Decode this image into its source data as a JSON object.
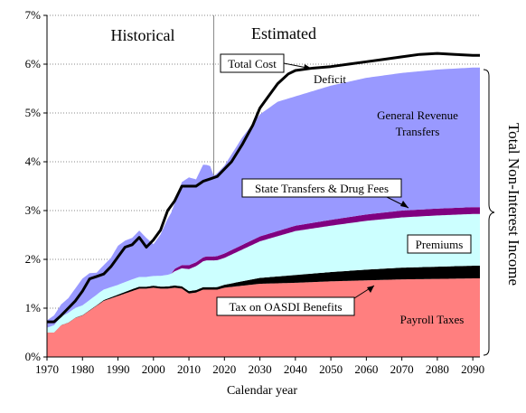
{
  "chart_data": {
    "type": "area",
    "xlabel": "Calendar year",
    "ylabel": "",
    "xlim": [
      1970,
      2092
    ],
    "ylim": [
      0,
      7
    ],
    "x_ticks": [
      1970,
      1980,
      1990,
      2000,
      2010,
      2020,
      2030,
      2040,
      2050,
      2060,
      2070,
      2080,
      2090
    ],
    "y_ticks": [
      "0%",
      "1%",
      "2%",
      "3%",
      "4%",
      "5%",
      "6%",
      "7%"
    ],
    "y_tick_values": [
      0,
      1,
      2,
      3,
      4,
      5,
      6,
      7
    ],
    "grid": "horizontal",
    "divider_year": 2017,
    "region_labels": {
      "historical": "Historical",
      "estimated": "Estimated"
    },
    "brace_label": "Total Non-Interest Income",
    "stacked_series": [
      {
        "name": "Payroll Taxes",
        "color": "#ff7f7f",
        "x": [
          1970,
          1972,
          1974,
          1976,
          1978,
          1980,
          1982,
          1984,
          1986,
          1988,
          1990,
          1992,
          1994,
          1996,
          1998,
          2000,
          2002,
          2004,
          2006,
          2008,
          2010,
          2012,
          2014,
          2016,
          2018,
          2020,
          2025,
          2030,
          2040,
          2050,
          2060,
          2070,
          2080,
          2090,
          2092
        ],
        "y": [
          0.5,
          0.5,
          0.65,
          0.7,
          0.8,
          0.85,
          0.95,
          1.05,
          1.15,
          1.2,
          1.25,
          1.3,
          1.35,
          1.4,
          1.4,
          1.42,
          1.4,
          1.4,
          1.42,
          1.4,
          1.3,
          1.32,
          1.38,
          1.38,
          1.38,
          1.42,
          1.46,
          1.5,
          1.52,
          1.55,
          1.57,
          1.59,
          1.6,
          1.61,
          1.61
        ]
      },
      {
        "name": "Tax on OASDI Benefits",
        "color": "#000000",
        "x": [
          1970,
          1984,
          1994,
          2000,
          2010,
          2017,
          2020,
          2025,
          2030,
          2040,
          2050,
          2060,
          2070,
          2080,
          2090,
          2092
        ],
        "y": [
          0,
          0.01,
          0.04,
          0.04,
          0.05,
          0.05,
          0.06,
          0.09,
          0.12,
          0.16,
          0.19,
          0.22,
          0.24,
          0.25,
          0.26,
          0.26
        ]
      },
      {
        "name": "Premiums",
        "color": "#ccffff",
        "x": [
          1970,
          1972,
          1976,
          1980,
          1985,
          1990,
          1995,
          2000,
          2005,
          2010,
          2015,
          2017,
          2020,
          2025,
          2030,
          2040,
          2050,
          2060,
          2070,
          2080,
          2090,
          2092
        ],
        "y": [
          0.1,
          0.15,
          0.2,
          0.2,
          0.22,
          0.2,
          0.2,
          0.2,
          0.25,
          0.45,
          0.55,
          0.55,
          0.55,
          0.65,
          0.75,
          0.9,
          0.95,
          1.0,
          1.03,
          1.05,
          1.06,
          1.06
        ]
      },
      {
        "name": "State Transfers & Drug Fees",
        "color": "#800080",
        "x": [
          1970,
          2005,
          2006,
          2010,
          2017,
          2020,
          2030,
          2040,
          2050,
          2060,
          2070,
          2080,
          2090,
          2092
        ],
        "y": [
          0,
          0,
          0.05,
          0.08,
          0.08,
          0.09,
          0.1,
          0.11,
          0.12,
          0.13,
          0.14,
          0.14,
          0.14,
          0.14
        ]
      },
      {
        "name": "General Revenue Transfers",
        "color": "#9999ff",
        "x": [
          1970,
          1972,
          1974,
          1976,
          1978,
          1980,
          1982,
          1984,
          1986,
          1988,
          1990,
          1992,
          1994,
          1996,
          1998,
          2000,
          2002,
          2004,
          2006,
          2008,
          2010,
          2012,
          2014,
          2016,
          2017,
          2020,
          2025,
          2030,
          2035,
          2040,
          2050,
          2060,
          2070,
          2080,
          2090,
          2092
        ],
        "y": [
          0.15,
          0.2,
          0.25,
          0.3,
          0.4,
          0.55,
          0.55,
          0.45,
          0.5,
          0.6,
          0.8,
          0.85,
          0.85,
          0.95,
          0.8,
          0.65,
          0.85,
          1.15,
          1.35,
          1.7,
          1.8,
          1.7,
          1.9,
          1.85,
          1.65,
          1.8,
          2.2,
          2.5,
          2.65,
          2.65,
          2.75,
          2.8,
          2.82,
          2.85,
          2.86,
          2.86
        ]
      }
    ],
    "lines": [
      {
        "name": "Total Cost",
        "color": "#000000",
        "x": [
          1970,
          1972,
          1974,
          1976,
          1978,
          1980,
          1982,
          1984,
          1986,
          1988,
          1990,
          1992,
          1994,
          1996,
          1998,
          2000,
          2002,
          2004,
          2006,
          2008,
          2010,
          2012,
          2014,
          2016,
          2018,
          2020,
          2022,
          2025,
          2028,
          2030,
          2032,
          2035,
          2038,
          2040,
          2045,
          2050,
          2055,
          2060,
          2065,
          2070,
          2075,
          2080,
          2085,
          2090,
          2092
        ],
        "y": [
          0.72,
          0.72,
          0.85,
          1.0,
          1.15,
          1.35,
          1.6,
          1.65,
          1.7,
          1.85,
          2.05,
          2.25,
          2.3,
          2.45,
          2.25,
          2.4,
          2.6,
          3.0,
          3.2,
          3.5,
          3.5,
          3.5,
          3.6,
          3.65,
          3.7,
          3.85,
          4.0,
          4.35,
          4.75,
          5.1,
          5.3,
          5.6,
          5.8,
          5.87,
          5.92,
          5.95,
          6.0,
          6.05,
          6.1,
          6.15,
          6.2,
          6.22,
          6.2,
          6.18,
          6.18
        ]
      }
    ],
    "annotations": [
      {
        "text": "Total Cost",
        "boxed": true
      },
      {
        "text": "Deficit",
        "boxed": false
      },
      {
        "text": "General Revenue Transfers",
        "lines": [
          "General Revenue",
          "Transfers"
        ],
        "boxed": false
      },
      {
        "text": "State Transfers & Drug Fees",
        "boxed": true
      },
      {
        "text": "Premiums",
        "boxed": true
      },
      {
        "text": "Tax on OASDI Benefits",
        "boxed": true
      },
      {
        "text": "Payroll Taxes",
        "boxed": false
      }
    ]
  }
}
